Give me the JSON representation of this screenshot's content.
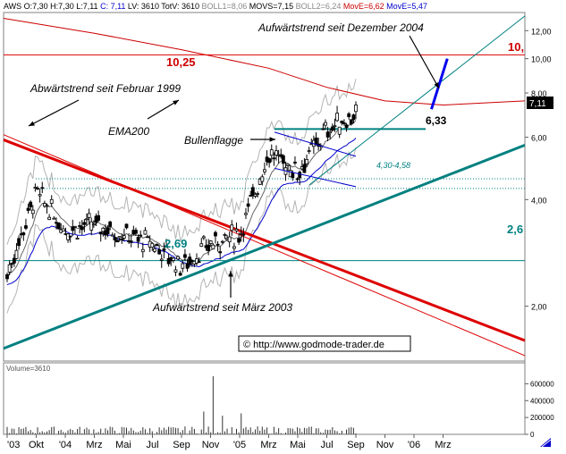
{
  "header": {
    "items": [
      {
        "text": "AWS O:7,30 H:7,30 L:7,11",
        "color": "#000000"
      },
      {
        "text": "C: 7,11",
        "color": "#0000cc"
      },
      {
        "text": "LV: 3610 TotV: 3610",
        "color": "#000000"
      },
      {
        "text": "BOLL1=8,06",
        "color": "#888888"
      },
      {
        "text": "MOVS=7,15",
        "color": "#000000"
      },
      {
        "text": "BOLL2=6,24",
        "color": "#888888"
      },
      {
        "text": "MovE=6,62",
        "color": "#cc0000"
      },
      {
        "text": "MovE=5,47",
        "color": "#0000cc"
      }
    ]
  },
  "colors": {
    "price": "#000000",
    "bollinger": "#b4b4b4",
    "ema200": "#cc0000",
    "ema_short": "#0000cc",
    "trend_support": "#008080",
    "trend_down": "#dd0000",
    "resistance": "#dd0000",
    "support_line": "#008080",
    "flag": "#0000cc",
    "projection": "#0000ee"
  },
  "chart_data": {
    "type": "candlestick",
    "y_scale": "log",
    "ylim": [
      1.4,
      13.5
    ],
    "y_ticks": [
      "12,00",
      "10,00",
      "8,00",
      "6,00",
      "4,00",
      "2,00"
    ],
    "x_ticks": [
      "'03",
      "Okt",
      "'04",
      "Mrz",
      "Mai",
      "Jul",
      "Sep",
      "Nov",
      "'05",
      "Mrz",
      "Mai",
      "Jul",
      "Sep",
      "Nov",
      "'06",
      "Mrz"
    ],
    "last_price_label": "7,11",
    "levels": [
      {
        "value": 10.25,
        "label": "10,25",
        "side_label": "10,"
      },
      {
        "value": 6.33,
        "label": "6,33"
      },
      {
        "value": 2.69,
        "label": "2,69",
        "side_label": "2,6"
      }
    ],
    "band_label": "4,30-4,58",
    "price_path": [
      [
        "'03",
        2.45
      ],
      [
        "Okt",
        4.2
      ],
      [
        "'04",
        3.3
      ],
      [
        "Mrz",
        3.4
      ],
      [
        "Mai",
        3.2
      ],
      [
        "Jul",
        3.0
      ],
      [
        "Sep",
        2.6
      ],
      [
        "Nov",
        3.0
      ],
      [
        "'05",
        3.2
      ],
      [
        "Mrz",
        5.4
      ],
      [
        "Mai",
        4.8
      ],
      [
        "Jul",
        6.3
      ],
      [
        "Sep",
        7.0
      ]
    ],
    "annotations": [
      "Aufwärtstrend seit Dezember 2004",
      "Abwärtstrend seit Februar 1999",
      "EMA200",
      "Bullenflagge",
      "Aufwärtstrend seit März 2003",
      "© http://www.godmode-trader.de"
    ],
    "volume": {
      "label": "Volume=3610",
      "ticks": [
        "600000",
        "400000",
        "200000",
        "0"
      ],
      "max": 700000
    }
  }
}
